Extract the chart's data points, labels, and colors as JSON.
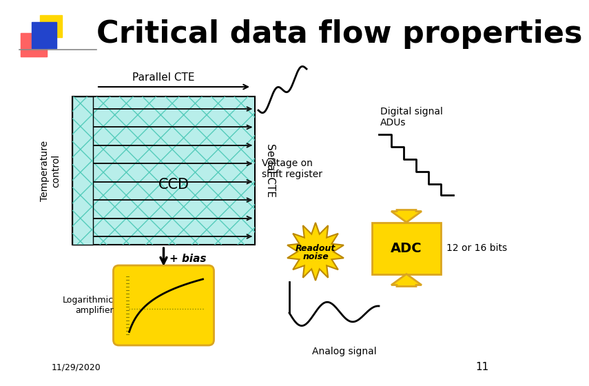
{
  "title": "Critical data flow properties",
  "bg_color": "#ffffff",
  "title_fontsize": 32,
  "title_color": "#000000",
  "date_text": "11/29/2020",
  "page_num": "11",
  "ccd_label": "CCD",
  "parallel_cte_label": "Parallel CTE",
  "serial_cte_label": "Serial CTE",
  "temp_control_label": "Temperature\ncontrol",
  "voltage_label": "Voltage on\nshift register",
  "digital_signal_label": "Digital signal\nADUs",
  "readout_noise_label": "Readout\nnoise",
  "adc_label": "ADC",
  "bits_label": "12 or 16 bits",
  "log_amp_label": "Logarithmic\namplifier",
  "analog_signal_label": "Analog signal",
  "bias_label": "+ bias",
  "ccd_fill_color": "#b8eeea",
  "ccd_hatch_color": "#55ccbb",
  "ccd_border_color": "#000000",
  "gold_color": "#FFD700",
  "gold_dark": "#DAA520",
  "logo_yellow": "#FFD700",
  "logo_red_top": "#FF6060",
  "logo_red_bot": "#FF2020",
  "logo_blue": "#2244CC"
}
